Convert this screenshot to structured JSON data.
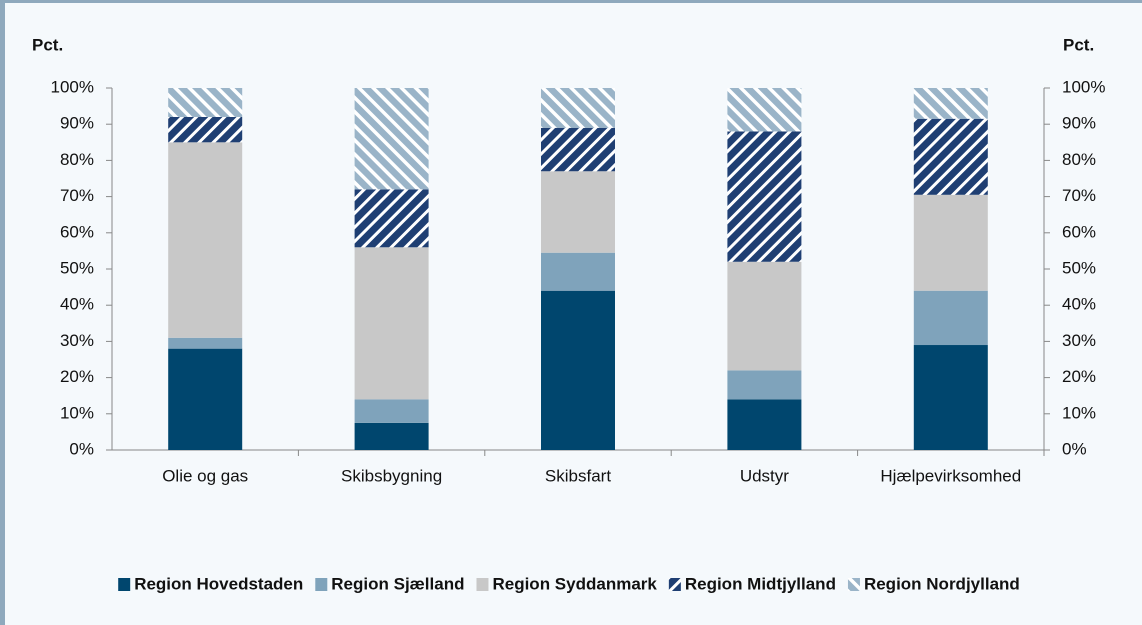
{
  "chart_data": {
    "type": "stacked-bar",
    "y_label": "Pct.",
    "y2_label": "Pct.",
    "categories": [
      "Olie og gas",
      "Skibsbygning",
      "Skibsfart",
      "Udstyr",
      "Hjælpevirksomhed"
    ],
    "series": [
      {
        "name": "Region Hovedstaden",
        "color": "#00466e",
        "pattern": "solid",
        "values": [
          28,
          7.5,
          44,
          14,
          29
        ]
      },
      {
        "name": "Region Sjælland",
        "color": "#7fa3bb",
        "pattern": "solid",
        "values": [
          3,
          6.5,
          10.5,
          8,
          15
        ]
      },
      {
        "name": "Region Syddanmark",
        "color": "#c8c8c8",
        "pattern": "solid",
        "values": [
          54,
          42,
          22.5,
          30,
          26.5
        ]
      },
      {
        "name": "Region Midtjylland",
        "color": "#1f3f73",
        "pattern": "hatch-right",
        "values": [
          7,
          16,
          12,
          36,
          21
        ]
      },
      {
        "name": "Region Nordjylland",
        "color": "#9ab4c8",
        "pattern": "hatch-left",
        "values": [
          8,
          28,
          11,
          12,
          8.5
        ]
      }
    ],
    "ylim": [
      0,
      100
    ],
    "yticks": [
      {
        "value": 0,
        "label": "0%"
      },
      {
        "value": 10,
        "label": "10%"
      },
      {
        "value": 20,
        "label": "20%"
      },
      {
        "value": 30,
        "label": "30%"
      },
      {
        "value": 40,
        "label": "40%"
      },
      {
        "value": 50,
        "label": "50%"
      },
      {
        "value": 60,
        "label": "60%"
      },
      {
        "value": 70,
        "label": "70%"
      },
      {
        "value": 80,
        "label": "80%"
      },
      {
        "value": 90,
        "label": "90%"
      },
      {
        "value": 100,
        "label": "100%"
      }
    ],
    "y2lim": [
      0,
      100
    ],
    "y2ticks": [
      {
        "value": 0,
        "label": "0%"
      },
      {
        "value": 10,
        "label": "10%"
      },
      {
        "value": 20,
        "label": "20%"
      },
      {
        "value": 30,
        "label": "30%"
      },
      {
        "value": 40,
        "label": "40%"
      },
      {
        "value": 50,
        "label": "50%"
      },
      {
        "value": 60,
        "label": "60%"
      },
      {
        "value": 70,
        "label": "70%"
      },
      {
        "value": 80,
        "label": "80%"
      },
      {
        "value": 90,
        "label": "90%"
      },
      {
        "value": 100,
        "label": "100%"
      }
    ],
    "legend": "bottom"
  }
}
